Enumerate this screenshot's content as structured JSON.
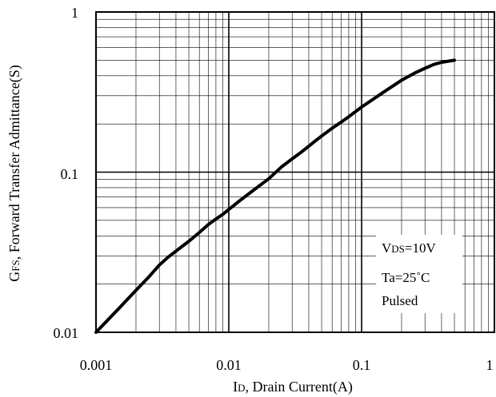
{
  "chart_data": {
    "type": "line",
    "x_scale": "log",
    "y_scale": "log",
    "xlim": [
      0.001,
      1
    ],
    "ylim": [
      0.01,
      1
    ],
    "grid": true,
    "x_ticks": [
      "0.001",
      "0.01",
      "0.1",
      "1"
    ],
    "y_ticks": [
      "0.01",
      "0.1",
      "1"
    ],
    "xlabel": {
      "main": "I",
      "sub": "D",
      "rest": ", Drain Current(A)"
    },
    "ylabel": {
      "main": "G",
      "sub": "FS",
      "rest": ", Forward Transfer Admittance(S)"
    },
    "annotations": {
      "line1": {
        "main": "V",
        "sub": "DS",
        "rest": "=10V"
      },
      "line2": "Ta=25˚C",
      "line3": "Pulsed"
    },
    "series": [
      {
        "x": [
          0.001,
          0.0015,
          0.002,
          0.0025,
          0.003,
          0.0035,
          0.004,
          0.0045,
          0.005,
          0.006,
          0.007,
          0.008,
          0.009,
          0.01,
          0.012,
          0.015,
          0.02,
          0.025,
          0.03,
          0.035,
          0.04,
          0.045,
          0.05,
          0.06,
          0.07,
          0.08,
          0.1,
          0.15,
          0.2,
          0.25,
          0.3,
          0.35,
          0.4,
          0.5
        ],
        "y": [
          0.01,
          0.0142,
          0.0183,
          0.0222,
          0.0263,
          0.0295,
          0.0321,
          0.0346,
          0.037,
          0.042,
          0.047,
          0.051,
          0.0545,
          0.0585,
          0.066,
          0.076,
          0.091,
          0.108,
          0.121,
          0.133,
          0.145,
          0.157,
          0.168,
          0.188,
          0.205,
          0.222,
          0.255,
          0.32,
          0.375,
          0.415,
          0.445,
          0.47,
          0.485,
          0.5
        ]
      }
    ]
  }
}
